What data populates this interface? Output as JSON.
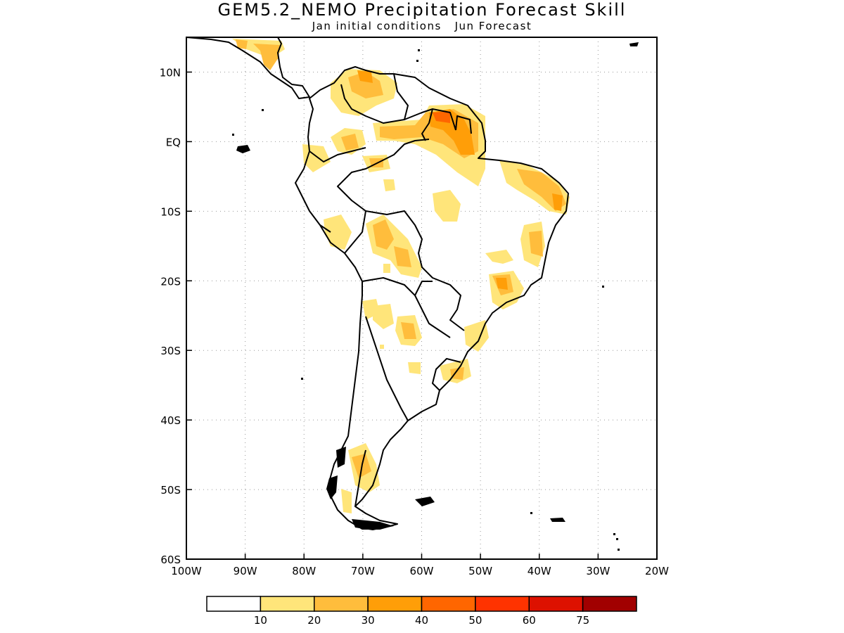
{
  "title": "GEM5.2_NEMO Precipitation Forecast Skill",
  "subtitle": "Jan initial conditions   Jun Forecast",
  "chart_data": {
    "type": "map",
    "lon_range": [
      -100,
      -20
    ],
    "lat_range": [
      -60,
      15
    ],
    "lon_ticks": [
      -100,
      -90,
      -80,
      -70,
      -60,
      -50,
      -40,
      -30,
      -20
    ],
    "lon_tick_labels": [
      "100W",
      "90W",
      "80W",
      "70W",
      "60W",
      "50W",
      "40W",
      "30W",
      "20W"
    ],
    "lat_ticks": [
      10,
      0,
      -10,
      -20,
      -30,
      -40,
      -50,
      -60
    ],
    "lat_tick_labels": [
      "10N",
      "EQ",
      "10S",
      "20S",
      "30S",
      "40S",
      "50S",
      "60S"
    ],
    "grid": "dotted",
    "colorbar": {
      "colors": [
        "#ffffff",
        "#ffe57a",
        "#ffbd3c",
        "#ff9e08",
        "#ff6600",
        "#ff3300",
        "#dd1100",
        "#a10000"
      ],
      "tick_labels": [
        "10",
        "20",
        "30",
        "40",
        "50",
        "60",
        "75"
      ]
    }
  }
}
